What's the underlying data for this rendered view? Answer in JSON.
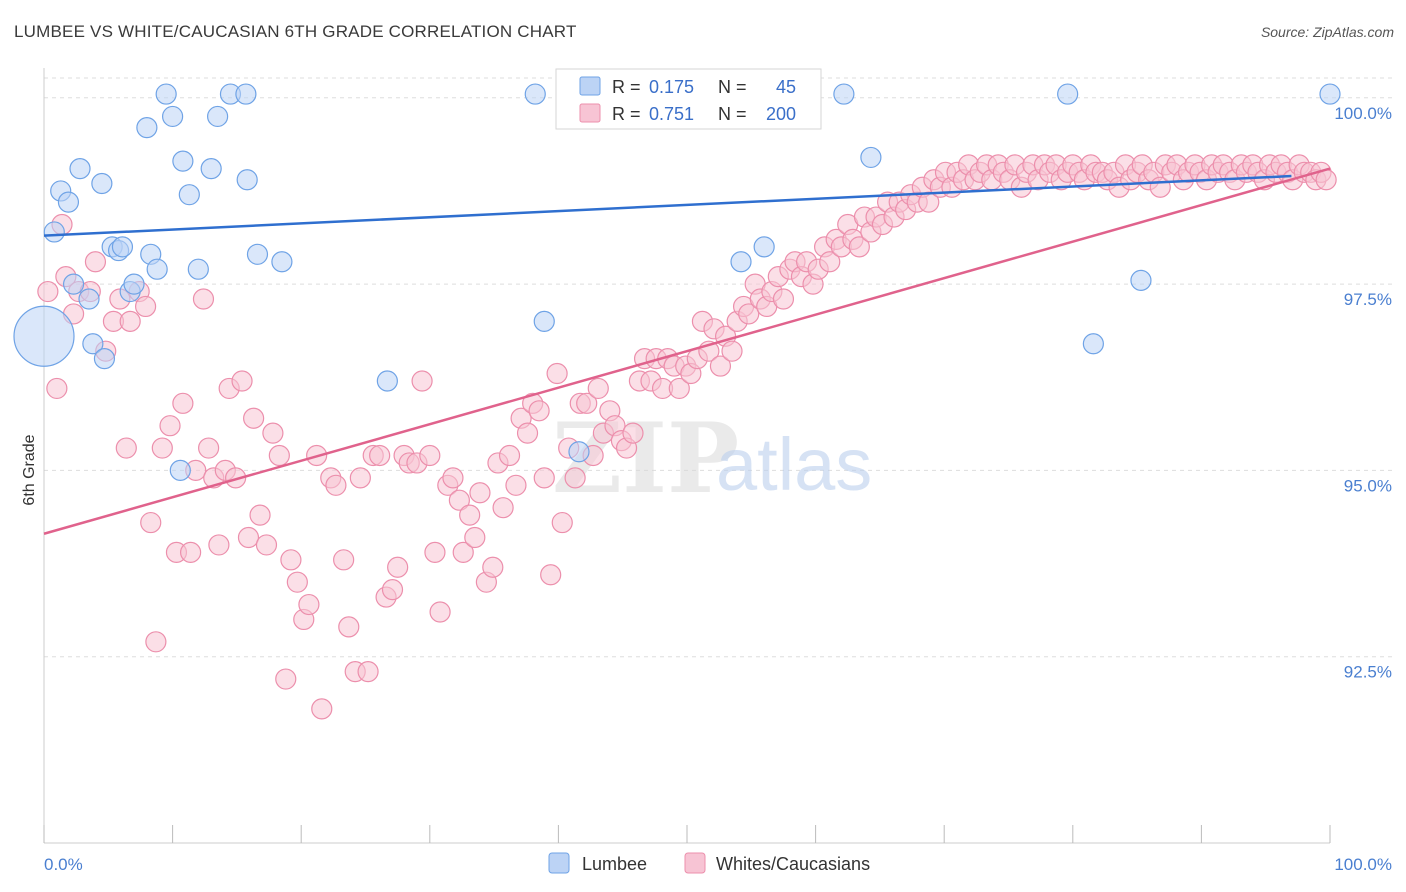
{
  "title": "LUMBEE VS WHITE/CAUCASIAN 6TH GRADE CORRELATION CHART",
  "source": "Source: ZipAtlas.com",
  "watermark": {
    "zip": "ZIP",
    "atlas": "atlas"
  },
  "colors": {
    "lumbee": "#6fa3e6",
    "lumbee_fill": "#bcd3f5",
    "lumbee_line": "#2f6fcf",
    "whites": "#ec8fac",
    "whites_fill": "#f7c4d4",
    "whites_line": "#e0628c",
    "tick_text": "#4a7fd0",
    "grid": "#dddddd"
  },
  "legend": {
    "row1": {
      "r_label": "R = ",
      "r_value": "0.175",
      "n_label": "N = ",
      "n_value": "45"
    },
    "row2": {
      "r_label": "R = ",
      "r_value": "0.751",
      "n_label": "N = ",
      "n_value": "200"
    }
  },
  "bottom_legend": {
    "lumbee": "Lumbee",
    "whites": "Whites/Caucasians"
  },
  "chart_data": {
    "type": "scatter",
    "title": "LUMBEE VS WHITE/CAUCASIAN 6TH GRADE CORRELATION CHART",
    "xlabel": "",
    "ylabel": "6th Grade",
    "xlim": [
      0,
      100
    ],
    "ylim": [
      90.0,
      100.4
    ],
    "x_tick_labels": [
      "0.0%",
      "100.0%"
    ],
    "y_ticks": [
      92.5,
      95.0,
      97.5,
      100.0
    ],
    "y_tick_labels": [
      "92.5%",
      "95.0%",
      "97.5%",
      "100.0%"
    ],
    "grid": true,
    "legend_position": "top-center",
    "series": [
      {
        "name": "Lumbee",
        "R": 0.175,
        "N": 45,
        "trend": {
          "x": [
            0,
            97
          ],
          "y": [
            98.15,
            98.95
          ]
        },
        "points": [
          [
            0.0,
            96.8,
            30
          ],
          [
            0.8,
            98.2,
            10
          ],
          [
            1.3,
            98.75,
            10
          ],
          [
            1.9,
            98.6,
            10
          ],
          [
            2.3,
            97.5,
            10
          ],
          [
            2.8,
            99.05,
            10
          ],
          [
            3.5,
            97.3,
            10
          ],
          [
            3.8,
            96.7,
            10
          ],
          [
            4.5,
            98.85,
            10
          ],
          [
            4.7,
            96.5,
            10
          ],
          [
            5.3,
            98.0,
            10
          ],
          [
            5.8,
            97.95,
            10
          ],
          [
            6.1,
            98.0,
            10
          ],
          [
            6.7,
            97.4,
            10
          ],
          [
            7.0,
            97.5,
            10
          ],
          [
            8.0,
            99.6,
            10
          ],
          [
            8.3,
            97.9,
            10
          ],
          [
            8.8,
            97.7,
            10
          ],
          [
            9.5,
            100.05,
            10
          ],
          [
            10.0,
            99.75,
            10
          ],
          [
            10.6,
            95.0,
            10
          ],
          [
            10.8,
            99.15,
            10
          ],
          [
            11.3,
            98.7,
            10
          ],
          [
            12.0,
            97.7,
            10
          ],
          [
            13.0,
            99.05,
            10
          ],
          [
            13.5,
            99.75,
            10
          ],
          [
            14.5,
            100.05,
            10
          ],
          [
            15.7,
            100.05,
            10
          ],
          [
            15.8,
            98.9,
            10
          ],
          [
            16.6,
            97.9,
            10
          ],
          [
            18.5,
            97.8,
            10
          ],
          [
            26.7,
            96.2,
            10
          ],
          [
            38.2,
            100.05,
            10
          ],
          [
            38.9,
            97.0,
            10
          ],
          [
            41.6,
            95.25,
            10
          ],
          [
            51.0,
            100.05,
            10
          ],
          [
            54.1,
            99.8,
            10
          ],
          [
            54.2,
            97.8,
            10
          ],
          [
            56.0,
            98.0,
            10
          ],
          [
            62.2,
            100.05,
            10
          ],
          [
            64.3,
            99.2,
            10
          ],
          [
            79.6,
            100.05,
            10
          ],
          [
            81.6,
            96.7,
            10
          ],
          [
            85.3,
            97.55,
            10
          ],
          [
            100.0,
            100.05,
            10
          ]
        ]
      },
      {
        "name": "Whites/Caucasians",
        "R": 0.751,
        "N": 200,
        "trend": {
          "x": [
            0,
            100
          ],
          "y": [
            94.15,
            99.05
          ]
        },
        "points": [
          [
            0.3,
            97.4
          ],
          [
            1.0,
            96.1
          ],
          [
            1.4,
            98.3
          ],
          [
            1.7,
            97.6
          ],
          [
            2.3,
            97.1
          ],
          [
            2.7,
            97.4
          ],
          [
            3.6,
            97.4
          ],
          [
            4.0,
            97.8
          ],
          [
            4.8,
            96.6
          ],
          [
            5.4,
            97.0
          ],
          [
            5.9,
            97.3
          ],
          [
            6.4,
            95.3
          ],
          [
            6.7,
            97.0
          ],
          [
            7.4,
            97.4
          ],
          [
            7.9,
            97.2
          ],
          [
            8.3,
            94.3
          ],
          [
            8.7,
            92.7
          ],
          [
            9.2,
            95.3
          ],
          [
            9.8,
            95.6
          ],
          [
            10.3,
            93.9
          ],
          [
            10.8,
            95.9
          ],
          [
            11.4,
            93.9
          ],
          [
            11.8,
            95.0
          ],
          [
            12.4,
            97.3
          ],
          [
            12.8,
            95.3
          ],
          [
            13.2,
            94.9
          ],
          [
            13.6,
            94.0
          ],
          [
            14.1,
            95.0
          ],
          [
            14.4,
            96.1
          ],
          [
            14.9,
            94.9
          ],
          [
            15.4,
            96.2
          ],
          [
            15.9,
            94.1
          ],
          [
            16.3,
            95.7
          ],
          [
            16.8,
            94.4
          ],
          [
            17.3,
            94.0
          ],
          [
            17.8,
            95.5
          ],
          [
            18.3,
            95.2
          ],
          [
            18.8,
            92.2
          ],
          [
            19.2,
            93.8
          ],
          [
            19.7,
            93.5
          ],
          [
            20.2,
            93.0
          ],
          [
            20.6,
            93.2
          ],
          [
            21.2,
            95.2
          ],
          [
            21.6,
            91.8
          ],
          [
            22.3,
            94.9
          ],
          [
            22.7,
            94.8
          ],
          [
            23.3,
            93.8
          ],
          [
            23.7,
            92.9
          ],
          [
            24.2,
            92.3
          ],
          [
            24.6,
            94.9
          ],
          [
            25.2,
            92.3
          ],
          [
            25.6,
            95.2
          ],
          [
            26.1,
            95.2
          ],
          [
            26.6,
            93.3
          ],
          [
            27.1,
            93.4
          ],
          [
            27.5,
            93.7
          ],
          [
            28.0,
            95.2
          ],
          [
            28.4,
            95.1
          ],
          [
            29.0,
            95.1
          ],
          [
            29.4,
            96.2
          ],
          [
            30.0,
            95.2
          ],
          [
            30.4,
            93.9
          ],
          [
            30.8,
            93.1
          ],
          [
            31.4,
            94.8
          ],
          [
            31.8,
            94.9
          ],
          [
            32.3,
            94.6
          ],
          [
            32.6,
            93.9
          ],
          [
            33.1,
            94.4
          ],
          [
            33.5,
            94.1
          ],
          [
            33.9,
            94.7
          ],
          [
            34.4,
            93.5
          ],
          [
            34.9,
            93.7
          ],
          [
            35.3,
            95.1
          ],
          [
            35.7,
            94.5
          ],
          [
            36.2,
            95.2
          ],
          [
            36.7,
            94.8
          ],
          [
            37.1,
            95.7
          ],
          [
            37.6,
            95.5
          ],
          [
            38.0,
            95.9
          ],
          [
            38.5,
            95.8
          ],
          [
            38.9,
            94.9
          ],
          [
            39.4,
            93.6
          ],
          [
            39.9,
            96.3
          ],
          [
            40.3,
            94.3
          ],
          [
            40.8,
            95.3
          ],
          [
            41.3,
            94.9
          ],
          [
            41.7,
            95.9
          ],
          [
            42.2,
            95.9
          ],
          [
            42.7,
            95.2
          ],
          [
            43.1,
            96.1
          ],
          [
            43.5,
            95.5
          ],
          [
            44.0,
            95.8
          ],
          [
            44.4,
            95.6
          ],
          [
            44.9,
            95.4
          ],
          [
            45.3,
            95.3
          ],
          [
            45.8,
            95.5
          ],
          [
            46.3,
            96.2
          ],
          [
            46.7,
            96.5
          ],
          [
            47.2,
            96.2
          ],
          [
            47.6,
            96.5
          ],
          [
            48.1,
            96.1
          ],
          [
            48.5,
            96.5
          ],
          [
            49.0,
            96.4
          ],
          [
            49.4,
            96.1
          ],
          [
            49.9,
            96.4
          ],
          [
            50.3,
            96.3
          ],
          [
            50.8,
            96.5
          ],
          [
            51.2,
            97.0
          ],
          [
            51.7,
            96.6
          ],
          [
            52.1,
            96.9
          ],
          [
            52.6,
            96.4
          ],
          [
            53.0,
            96.8
          ],
          [
            53.5,
            96.6
          ],
          [
            53.9,
            97.0
          ],
          [
            54.4,
            97.2
          ],
          [
            54.8,
            97.1
          ],
          [
            55.3,
            97.5
          ],
          [
            55.7,
            97.3
          ],
          [
            56.2,
            97.2
          ],
          [
            56.6,
            97.4
          ],
          [
            57.1,
            97.6
          ],
          [
            57.5,
            97.3
          ],
          [
            58.0,
            97.7
          ],
          [
            58.4,
            97.8
          ],
          [
            58.9,
            97.6
          ],
          [
            59.3,
            97.8
          ],
          [
            59.8,
            97.5
          ],
          [
            60.2,
            97.7
          ],
          [
            60.7,
            98.0
          ],
          [
            61.1,
            97.8
          ],
          [
            61.6,
            98.1
          ],
          [
            62.0,
            98.0
          ],
          [
            62.5,
            98.3
          ],
          [
            62.9,
            98.1
          ],
          [
            63.4,
            98.0
          ],
          [
            63.8,
            98.4
          ],
          [
            64.3,
            98.2
          ],
          [
            64.7,
            98.4
          ],
          [
            65.2,
            98.3
          ],
          [
            65.6,
            98.6
          ],
          [
            66.1,
            98.4
          ],
          [
            66.5,
            98.6
          ],
          [
            67.0,
            98.5
          ],
          [
            67.4,
            98.7
          ],
          [
            67.9,
            98.6
          ],
          [
            68.3,
            98.8
          ],
          [
            68.8,
            98.6
          ],
          [
            69.2,
            98.9
          ],
          [
            69.7,
            98.8
          ],
          [
            70.1,
            99.0
          ],
          [
            70.6,
            98.8
          ],
          [
            71.0,
            99.0
          ],
          [
            71.5,
            98.9
          ],
          [
            71.9,
            99.1
          ],
          [
            72.4,
            98.9
          ],
          [
            72.8,
            99.0
          ],
          [
            73.3,
            99.1
          ],
          [
            73.7,
            98.9
          ],
          [
            74.2,
            99.1
          ],
          [
            74.6,
            99.0
          ],
          [
            75.1,
            98.9
          ],
          [
            75.5,
            99.1
          ],
          [
            76.0,
            98.8
          ],
          [
            76.4,
            99.0
          ],
          [
            76.9,
            99.1
          ],
          [
            77.3,
            98.9
          ],
          [
            77.8,
            99.1
          ],
          [
            78.2,
            99.0
          ],
          [
            78.7,
            99.1
          ],
          [
            79.1,
            98.9
          ],
          [
            79.6,
            99.0
          ],
          [
            80.0,
            99.1
          ],
          [
            80.5,
            99.0
          ],
          [
            80.9,
            98.9
          ],
          [
            81.4,
            99.1
          ],
          [
            81.8,
            99.0
          ],
          [
            82.3,
            99.0
          ],
          [
            82.7,
            98.9
          ],
          [
            83.2,
            99.0
          ],
          [
            83.6,
            98.8
          ],
          [
            84.1,
            99.1
          ],
          [
            84.5,
            98.9
          ],
          [
            85.0,
            99.0
          ],
          [
            85.4,
            99.1
          ],
          [
            85.9,
            98.9
          ],
          [
            86.3,
            99.0
          ],
          [
            86.8,
            98.8
          ],
          [
            87.2,
            99.1
          ],
          [
            87.7,
            99.0
          ],
          [
            88.1,
            99.1
          ],
          [
            88.6,
            98.9
          ],
          [
            89.0,
            99.0
          ],
          [
            89.5,
            99.1
          ],
          [
            89.9,
            99.0
          ],
          [
            90.4,
            98.9
          ],
          [
            90.8,
            99.1
          ],
          [
            91.3,
            99.0
          ],
          [
            91.7,
            99.1
          ],
          [
            92.2,
            99.0
          ],
          [
            92.6,
            98.9
          ],
          [
            93.1,
            99.1
          ],
          [
            93.5,
            99.0
          ],
          [
            94.0,
            99.1
          ],
          [
            94.4,
            99.0
          ],
          [
            94.9,
            98.9
          ],
          [
            95.3,
            99.1
          ],
          [
            95.8,
            99.0
          ],
          [
            96.2,
            99.1
          ],
          [
            96.7,
            99.0
          ],
          [
            97.1,
            98.9
          ],
          [
            97.6,
            99.1
          ],
          [
            98.0,
            99.0
          ],
          [
            98.5,
            99.0
          ],
          [
            98.9,
            98.9
          ],
          [
            99.3,
            99.0
          ],
          [
            99.7,
            98.9
          ]
        ]
      }
    ]
  }
}
